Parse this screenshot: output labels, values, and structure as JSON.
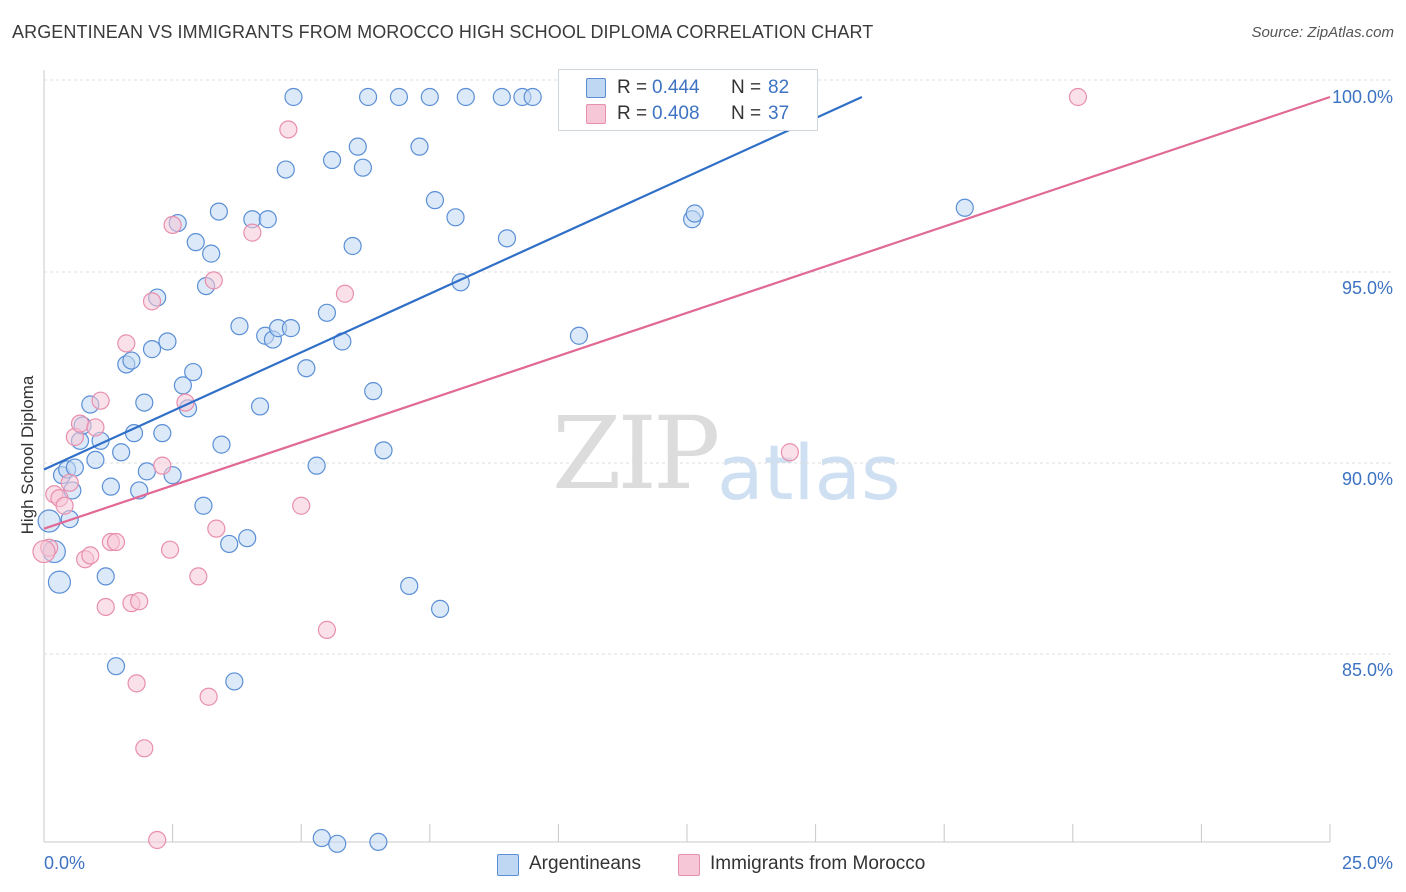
{
  "chart_data": {
    "type": "scatter",
    "title": "ARGENTINEAN VS IMMIGRANTS FROM MOROCCO HIGH SCHOOL DIPLOMA CORRELATION CHART",
    "source": "Source: ZipAtlas.com",
    "xlabel": "",
    "ylabel": "High School Diploma",
    "xlim": [
      0.0,
      25.0
    ],
    "ylim": [
      80.0,
      100.5
    ],
    "x_tick_labels": [
      "0.0%",
      "25.0%"
    ],
    "y_ticks": [
      85.0,
      90.0,
      95.0,
      100.0
    ],
    "y_tick_labels": [
      "85.0%",
      "90.0%",
      "95.0%",
      "100.0%"
    ],
    "grid": true,
    "legend_position": "top-center",
    "watermark": {
      "zip": "ZIP",
      "atlas": "atlas"
    },
    "series": [
      {
        "name": "Argentineans",
        "color": "#5b8fd6",
        "fill": "#c0d7f3",
        "line_color": "#2f6fc8",
        "R": "0.444",
        "N": "82",
        "trend": {
          "x": [
            0.0,
            15.9
          ],
          "y": [
            90.25,
            100.0
          ]
        },
        "points": [
          [
            0.1,
            88.9
          ],
          [
            0.2,
            88.1
          ],
          [
            0.3,
            87.3
          ],
          [
            0.35,
            90.1
          ],
          [
            0.45,
            90.25
          ],
          [
            0.5,
            88.95
          ],
          [
            0.55,
            89.7
          ],
          [
            0.6,
            90.3
          ],
          [
            0.7,
            91.0
          ],
          [
            0.75,
            91.4
          ],
          [
            0.9,
            91.95
          ],
          [
            1.0,
            90.5
          ],
          [
            1.1,
            91.0
          ],
          [
            1.2,
            87.45
          ],
          [
            1.3,
            89.8
          ],
          [
            1.4,
            85.1
          ],
          [
            1.5,
            90.7
          ],
          [
            1.6,
            93.0
          ],
          [
            1.7,
            93.1
          ],
          [
            1.75,
            91.2
          ],
          [
            1.85,
            89.7
          ],
          [
            1.95,
            92.0
          ],
          [
            2.0,
            90.2
          ],
          [
            2.1,
            93.4
          ],
          [
            2.2,
            94.75
          ],
          [
            2.3,
            91.2
          ],
          [
            2.4,
            93.6
          ],
          [
            2.5,
            90.1
          ],
          [
            2.6,
            96.7
          ],
          [
            2.7,
            92.45
          ],
          [
            2.8,
            91.85
          ],
          [
            2.9,
            92.8
          ],
          [
            2.95,
            96.2
          ],
          [
            3.1,
            89.3
          ],
          [
            3.15,
            95.05
          ],
          [
            3.25,
            95.9
          ],
          [
            3.4,
            97.0
          ],
          [
            3.45,
            90.9
          ],
          [
            3.6,
            88.3
          ],
          [
            3.7,
            84.7
          ],
          [
            3.8,
            94.0
          ],
          [
            3.95,
            88.45
          ],
          [
            4.05,
            96.8
          ],
          [
            4.2,
            91.9
          ],
          [
            4.3,
            93.75
          ],
          [
            4.35,
            96.8
          ],
          [
            4.45,
            93.65
          ],
          [
            4.55,
            93.95
          ],
          [
            4.7,
            98.1
          ],
          [
            4.8,
            93.95
          ],
          [
            4.85,
            100.0
          ],
          [
            5.1,
            92.9
          ],
          [
            5.3,
            90.35
          ],
          [
            5.4,
            80.6
          ],
          [
            5.5,
            94.35
          ],
          [
            5.6,
            98.35
          ],
          [
            5.7,
            80.45
          ],
          [
            5.8,
            93.6
          ],
          [
            6.0,
            96.1
          ],
          [
            6.1,
            98.7
          ],
          [
            6.2,
            98.15
          ],
          [
            6.3,
            100.0
          ],
          [
            6.4,
            92.3
          ],
          [
            6.5,
            80.5
          ],
          [
            6.6,
            90.75
          ],
          [
            6.9,
            100.0
          ],
          [
            7.1,
            87.2
          ],
          [
            7.3,
            98.7
          ],
          [
            7.5,
            100.0
          ],
          [
            7.6,
            97.3
          ],
          [
            7.7,
            86.6
          ],
          [
            8.0,
            96.85
          ],
          [
            8.1,
            95.15
          ],
          [
            8.2,
            100.0
          ],
          [
            8.9,
            100.0
          ],
          [
            9.0,
            96.3
          ],
          [
            9.3,
            100.0
          ],
          [
            9.5,
            100.0
          ],
          [
            10.4,
            93.75
          ],
          [
            12.6,
            96.8
          ],
          [
            12.65,
            96.95
          ],
          [
            17.9,
            97.1
          ]
        ]
      },
      {
        "name": "Immigrants from Morocco",
        "color": "#e88fae",
        "fill": "#f6c7d6",
        "line_color": "#e06a95",
        "R": "0.408",
        "N": "37",
        "trend": {
          "x": [
            0.0,
            25.0
          ],
          "y": [
            88.7,
            100.0
          ]
        },
        "points": [
          [
            0.1,
            88.2
          ],
          [
            0.2,
            89.6
          ],
          [
            0.3,
            89.5
          ],
          [
            0.4,
            89.3
          ],
          [
            0.5,
            89.9
          ],
          [
            0.6,
            91.1
          ],
          [
            0.7,
            91.45
          ],
          [
            0.8,
            87.9
          ],
          [
            0.9,
            88.0
          ],
          [
            1.0,
            91.35
          ],
          [
            1.1,
            92.05
          ],
          [
            1.2,
            86.65
          ],
          [
            1.3,
            88.35
          ],
          [
            1.4,
            88.35
          ],
          [
            1.6,
            93.55
          ],
          [
            1.7,
            86.75
          ],
          [
            1.8,
            84.65
          ],
          [
            1.85,
            86.8
          ],
          [
            1.95,
            82.95
          ],
          [
            2.1,
            94.65
          ],
          [
            2.2,
            80.55
          ],
          [
            2.3,
            90.35
          ],
          [
            2.45,
            88.15
          ],
          [
            2.5,
            96.65
          ],
          [
            2.75,
            92.0
          ],
          [
            3.0,
            87.45
          ],
          [
            3.2,
            84.3
          ],
          [
            3.3,
            95.2
          ],
          [
            3.35,
            88.7
          ],
          [
            4.05,
            96.45
          ],
          [
            4.75,
            99.15
          ],
          [
            5.0,
            89.3
          ],
          [
            5.5,
            86.05
          ],
          [
            5.85,
            94.85
          ],
          [
            14.5,
            90.7
          ],
          [
            20.1,
            100.0
          ],
          [
            0.0,
            88.1
          ]
        ]
      }
    ]
  },
  "legend_bottom": [
    "Argentineans",
    "Immigrants from Morocco"
  ]
}
